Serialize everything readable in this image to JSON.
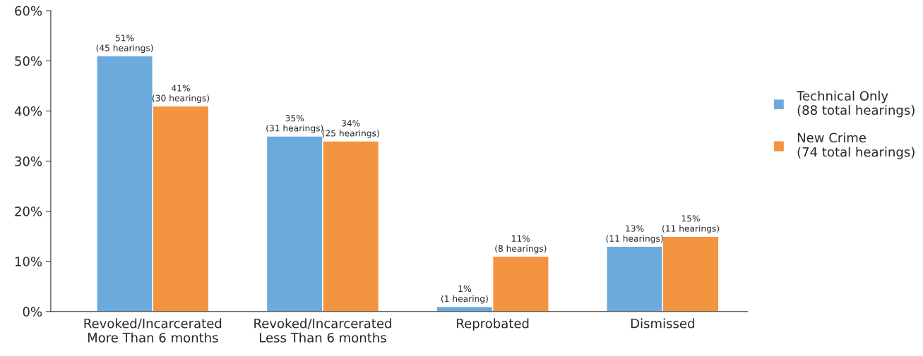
{
  "chart_data": {
    "type": "bar",
    "categories": [
      "Revoked/Incarcerated\nMore Than 6 months",
      "Revoked/Incarcerated\nLess Than 6 months",
      "Reprobated",
      "Dismissed"
    ],
    "series": [
      {
        "name": "Technical Only\n(88 total hearings)",
        "color": "#6aaadd",
        "values": [
          51,
          35,
          1,
          13
        ],
        "value_labels": [
          "51%\n(45 hearings)",
          "35%\n(31 hearings)",
          "1%\n(1 hearing)",
          "13%\n(11 hearings)"
        ]
      },
      {
        "name": "New Crime\n(74 total hearings)",
        "color": "#f29440",
        "values": [
          41,
          34,
          11,
          15
        ],
        "value_labels": [
          "41%\n(30 hearings)",
          "34%\n(25 hearings)",
          "11%\n(8 hearings)",
          "15%\n(11 hearings)"
        ]
      }
    ],
    "ylim": [
      0,
      60
    ],
    "yticks": [
      {
        "value": 0,
        "label": "0%"
      },
      {
        "value": 10,
        "label": "10%"
      },
      {
        "value": 20,
        "label": "20%"
      },
      {
        "value": 30,
        "label": "30%"
      },
      {
        "value": 40,
        "label": "40%"
      },
      {
        "value": 50,
        "label": "50%"
      },
      {
        "value": 60,
        "label": "60%"
      }
    ],
    "grid": false,
    "legend": "right"
  }
}
